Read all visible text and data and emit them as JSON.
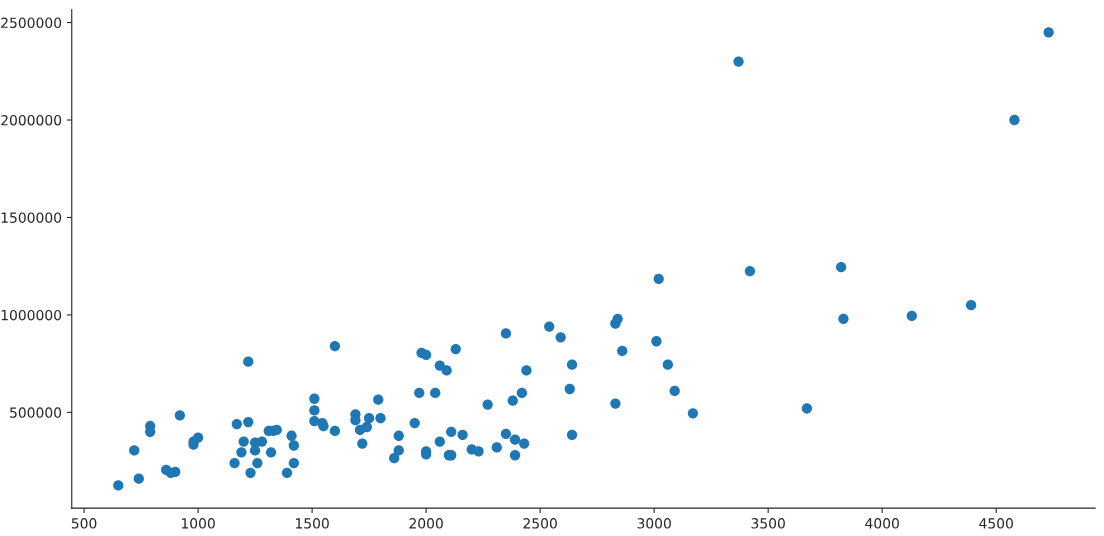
{
  "chart_data": {
    "type": "scatter",
    "marker": "circle",
    "grid": false,
    "legend": false,
    "xlim": [
      446,
      4934
    ],
    "ylim": [
      8750,
      2566250
    ],
    "xticks": [
      500,
      1000,
      1500,
      2000,
      2500,
      3000,
      3500,
      4000,
      4500
    ],
    "yticks": [
      500000,
      1000000,
      1500000,
      2000000,
      2500000
    ],
    "series": [
      {
        "color": "#1f77b4",
        "x": [
          650,
          720,
          740,
          790,
          790,
          860,
          880,
          900,
          920,
          980,
          980,
          1000,
          1160,
          1170,
          1190,
          1200,
          1220,
          1220,
          1230,
          1250,
          1250,
          1260,
          1280,
          1310,
          1320,
          1330,
          1345,
          1390,
          1410,
          1420,
          1420,
          1510,
          1510,
          1510,
          1545,
          1550,
          1600,
          1600,
          1690,
          1690,
          1710,
          1720,
          1740,
          1750,
          1790,
          1800,
          1860,
          1880,
          1880,
          1950,
          1970,
          1980,
          2000,
          2000,
          2000,
          2040,
          2060,
          2060,
          2090,
          2100,
          2110,
          2110,
          2130,
          2160,
          2200,
          2230,
          2270,
          2310,
          2350,
          2350,
          2380,
          2390,
          2390,
          2420,
          2430,
          2440,
          2540,
          2590,
          2630,
          2640,
          2640,
          2830,
          2840,
          2830,
          2860,
          3010,
          3020,
          3060,
          3090,
          3170,
          3370,
          3420,
          3670,
          3820,
          3830,
          4130,
          4390,
          4580,
          4730
        ],
        "values": [
          125000,
          305000,
          160000,
          430000,
          400000,
          205000,
          190000,
          195000,
          485000,
          350000,
          335000,
          370000,
          240000,
          440000,
          295000,
          350000,
          760000,
          450000,
          190000,
          345000,
          305000,
          240000,
          350000,
          405000,
          295000,
          405000,
          410000,
          190000,
          380000,
          330000,
          240000,
          570000,
          510000,
          455000,
          445000,
          430000,
          840000,
          405000,
          490000,
          460000,
          410000,
          340000,
          425000,
          470000,
          565000,
          470000,
          265000,
          380000,
          305000,
          445000,
          600000,
          805000,
          795000,
          300000,
          285000,
          600000,
          740000,
          350000,
          715000,
          280000,
          400000,
          280000,
          825000,
          385000,
          310000,
          300000,
          540000,
          320000,
          905000,
          390000,
          560000,
          360000,
          280000,
          600000,
          340000,
          715000,
          940000,
          885000,
          620000,
          745000,
          385000,
          955000,
          980000,
          545000,
          815000,
          865000,
          1185000,
          745000,
          610000,
          495000,
          2300000,
          1225000,
          520000,
          1245000,
          980000,
          995000,
          1050000,
          2000000,
          2450000
        ]
      }
    ]
  }
}
